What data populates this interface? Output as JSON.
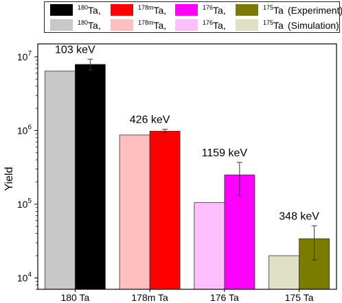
{
  "chart_data": {
    "type": "bar",
    "ylabel": "Yield",
    "yscale": "log",
    "ylim": [
      7000,
      15000000
    ],
    "yticks": [
      {
        "value": 10000,
        "base": "10",
        "exp": "4"
      },
      {
        "value": 100000,
        "base": "10",
        "exp": "5"
      },
      {
        "value": 1000000,
        "base": "10",
        "exp": "6"
      },
      {
        "value": 10000000,
        "base": "10",
        "exp": "7"
      }
    ],
    "categories": [
      "180 Ta",
      "178m Ta",
      "176 Ta",
      "175 Ta"
    ],
    "annotations": [
      "103 keV",
      "426 keV",
      "1159 keV",
      "348 keV"
    ],
    "series": [
      {
        "name": "(Simulation)",
        "values": [
          6400000,
          870000,
          105000,
          20000
        ]
      },
      {
        "name": "(Experiment)",
        "values": [
          7900000,
          980000,
          250000,
          34000
        ],
        "error_low": [
          6600000,
          940000,
          130000,
          17500
        ],
        "error_high": [
          9300000,
          1040000,
          370000,
          51000
        ]
      }
    ],
    "colors": {
      "experiment": [
        "#000000",
        "#ff0000",
        "#ff00ff",
        "#7b7b00"
      ],
      "simulation": [
        "#c8c8c8",
        "#ffbfbf",
        "#ffbfff",
        "#e0e0c4"
      ]
    },
    "legend": {
      "experiment_items": [
        {
          "sup": "180",
          "label": "Ta,"
        },
        {
          "sup": "178m",
          "label": "Ta,"
        },
        {
          "sup": "176",
          "label": "Ta,"
        },
        {
          "sup": "175",
          "label": "Ta"
        }
      ],
      "experiment_note": "(Experiment)",
      "simulation_items": [
        {
          "sup": "180",
          "label": "Ta,"
        },
        {
          "sup": "178m",
          "label": "Ta,"
        },
        {
          "sup": "176",
          "label": "Ta,"
        },
        {
          "sup": "175",
          "label": "Ta"
        }
      ],
      "simulation_note": "(Simulation)",
      "placement": "top"
    },
    "grid": false
  }
}
